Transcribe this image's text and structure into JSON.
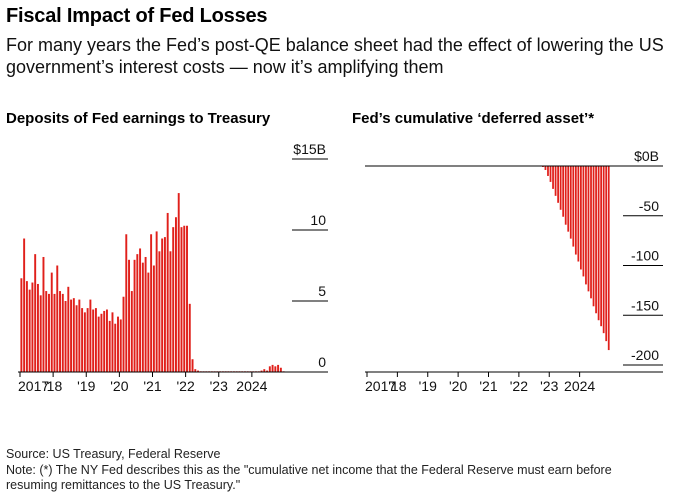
{
  "header": {
    "title": "Fiscal Impact of Fed Losses",
    "subtitle": "For many years the Fed’s post-QE balance sheet had the effect of lowering the US government’s interest costs — now it’s amplifying them"
  },
  "footer": {
    "source": "Source: US Treasury, Federal Reserve",
    "note": "Note: (*) The NY Fed describes this as the \"cumulative net income that the Federal Reserve must earn before resuming remittances to the US Treasury.\""
  },
  "colors": {
    "bar": "#e0201b",
    "axis": "#000000",
    "grid": "#000000"
  },
  "chart_data": [
    {
      "type": "bar",
      "title": "Deposits of Fed earnings to Treasury",
      "x_start": "2017-01",
      "x_step": "month",
      "x_tick_labels": [
        "2017",
        "'18",
        "'19",
        "'20",
        "'21",
        "'22",
        "'23",
        "2024"
      ],
      "x_tick_years": [
        2017,
        2018,
        2019,
        2020,
        2021,
        2022,
        2023,
        2024
      ],
      "y_ticks": [
        0,
        5,
        10,
        15
      ],
      "y_tick_labels": [
        "0",
        "5",
        "10",
        "$15B"
      ],
      "ylim": [
        0,
        15
      ],
      "axis_side": "right",
      "grid": false,
      "values": [
        6.6,
        9.4,
        6.4,
        5.8,
        6.3,
        8.3,
        6.2,
        5.4,
        8.1,
        5.7,
        5.5,
        7.0,
        5.5,
        7.5,
        5.7,
        5.5,
        5.0,
        6.0,
        5.1,
        5.2,
        4.7,
        5.1,
        4.5,
        4.2,
        4.5,
        5.1,
        4.4,
        4.5,
        3.9,
        4.1,
        4.3,
        4.4,
        3.6,
        4.2,
        3.4,
        3.9,
        3.7,
        5.3,
        9.7,
        7.9,
        5.7,
        7.9,
        8.3,
        8.7,
        7.7,
        8.1,
        7.0,
        9.7,
        7.5,
        9.9,
        8.5,
        9.4,
        9.5,
        11.2,
        8.5,
        10.2,
        10.9,
        12.6,
        10.2,
        10.3,
        10.3,
        4.8,
        0.9,
        0.2,
        0.1,
        0.05,
        0.05,
        0.05,
        0.05,
        0.05,
        0.05,
        0.05,
        0.05,
        0.05,
        0.05,
        0.05,
        0.05,
        0.05,
        0.05,
        0.05,
        0.05,
        0.05,
        0.05,
        0.05,
        0.05,
        0.05,
        0.05,
        0.1,
        0.2,
        0.1,
        0.4,
        0.5,
        0.4,
        0.5,
        0.3,
        0.05
      ]
    },
    {
      "type": "bar",
      "title": "Fed’s cumulative ‘deferred asset’*",
      "x_start": "2017-01",
      "x_step": "month",
      "x_tick_labels": [
        "2017",
        "'18",
        "'19",
        "'20",
        "'21",
        "'22",
        "'23",
        "2024"
      ],
      "x_tick_years": [
        2017,
        2018,
        2019,
        2020,
        2021,
        2022,
        2023,
        2024
      ],
      "y_ticks": [
        0,
        -50,
        -100,
        -150,
        -200
      ],
      "y_tick_labels": [
        "$0B",
        "-50",
        "-100",
        "-150",
        "-200"
      ],
      "ylim": [
        -200,
        0
      ],
      "axis_side": "right",
      "grid": false,
      "values": [
        0,
        0,
        0,
        0,
        0,
        0,
        0,
        0,
        0,
        0,
        0,
        0,
        0,
        0,
        0,
        0,
        0,
        0,
        0,
        0,
        0,
        0,
        0,
        0,
        0,
        0,
        0,
        0,
        0,
        0,
        0,
        0,
        0,
        0,
        0,
        0,
        0,
        0,
        0,
        0,
        0,
        0,
        0,
        0,
        0,
        0,
        0,
        0,
        0,
        0,
        0,
        0,
        0,
        0,
        0,
        0,
        0,
        0,
        0,
        0,
        0,
        0,
        0,
        0,
        0,
        0,
        0,
        0,
        0,
        -1,
        -4,
        -10,
        -16,
        -23,
        -30,
        -37,
        -44,
        -51,
        -59,
        -66,
        -73,
        -81,
        -89,
        -96,
        -104,
        -111,
        -119,
        -126,
        -133,
        -141,
        -148,
        -155,
        -161,
        -168,
        -176,
        -185
      ]
    }
  ]
}
